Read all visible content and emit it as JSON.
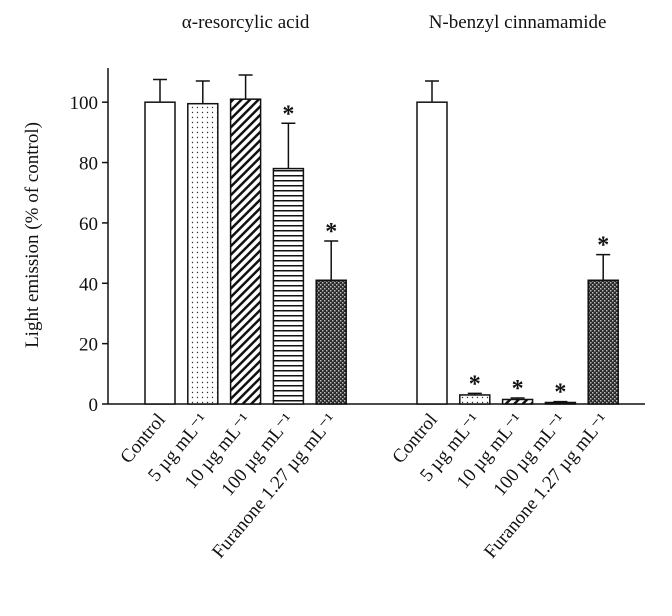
{
  "chart_data": {
    "type": "bar",
    "ylabel": "Light  emission (% of control)",
    "ylim": [
      0,
      110
    ],
    "yticks": [
      0,
      20,
      40,
      60,
      80,
      100
    ],
    "significance_marker": "*",
    "groups": [
      {
        "title": "α-resorcylic acid",
        "categories": [
          "Control",
          "5 µg mL⁻¹",
          "10 µg mL⁻¹",
          "100 µg mL⁻¹",
          "Furanone 1.27 µg mL⁻¹"
        ],
        "values": [
          100,
          99.5,
          101,
          78,
          41
        ],
        "errors": [
          7.5,
          7.5,
          8,
          15,
          13
        ],
        "patterns": [
          "none",
          "dots",
          "diagonal",
          "horizontal",
          "checker"
        ],
        "significant": [
          false,
          false,
          false,
          true,
          true
        ]
      },
      {
        "title": "N-benzyl cinnamamide",
        "categories": [
          "Control",
          "5 µg mL⁻¹",
          "10 µg mL⁻¹",
          "100 µg mL⁻¹",
          "Furanone 1.27 µg mL⁻¹"
        ],
        "values": [
          100,
          3,
          1.5,
          0.5,
          41
        ],
        "errors": [
          7,
          0.5,
          0.5,
          0.3,
          8.5
        ],
        "patterns": [
          "none",
          "dots",
          "diagonal",
          "horizontal",
          "checker"
        ],
        "significant": [
          false,
          true,
          true,
          true,
          true
        ]
      }
    ]
  }
}
